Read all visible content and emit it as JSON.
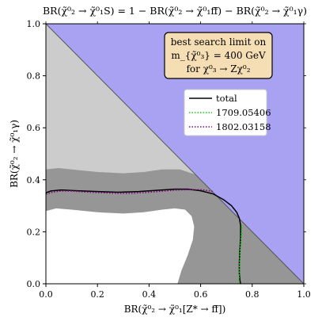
{
  "chart_data": {
    "type": "area",
    "title": "BR(χ̃⁰₂ → χ̃⁰₁S) = 1 − BR(χ̃⁰₂ → χ̃⁰₁ff̄) − BR(χ̃⁰₂ → χ̃⁰₁γ)",
    "xlabel": "BR(χ̃⁰₂ → χ̃⁰₁[Z* → ff̄])",
    "ylabel": "BR(χ̃⁰₂ → χ̃⁰₁γ)",
    "xlim": [
      0,
      1
    ],
    "ylim": [
      0,
      1
    ],
    "x_ticks": [
      "0.0",
      "0.2",
      "0.4",
      "0.6",
      "0.8",
      "1.0"
    ],
    "y_ticks": [
      "0.0",
      "0.2",
      "0.4",
      "0.6",
      "0.8",
      "1.0"
    ],
    "grid": false,
    "unphysical_region": {
      "description": "x + y > 1",
      "color": "#a9a2f2"
    },
    "upper_region_color": "#cccccc",
    "band_color": "#969696",
    "allowed_region_color": "#ffffff",
    "annotation": {
      "line1": "best search limit on",
      "line2": "m_{χ̃⁰₃} = 400  GeV",
      "line3": "for χ⁰₃ → Zχ⁰₂",
      "fill": "#f5deb3"
    },
    "legend_position": "center-right",
    "series": [
      {
        "name": "total",
        "color": "#000000",
        "style": "solid",
        "x": [
          0.0,
          0.02,
          0.06,
          0.12,
          0.2,
          0.28,
          0.36,
          0.44,
          0.5,
          0.55,
          0.6,
          0.65,
          0.69,
          0.72,
          0.74,
          0.75,
          0.755,
          0.755,
          0.752,
          0.75,
          0.75,
          0.752,
          0.755
        ],
        "y": [
          0.35,
          0.357,
          0.361,
          0.358,
          0.355,
          0.352,
          0.355,
          0.36,
          0.364,
          0.364,
          0.358,
          0.345,
          0.323,
          0.3,
          0.275,
          0.252,
          0.225,
          0.18,
          0.13,
          0.08,
          0.04,
          0.015,
          0.0
        ]
      },
      {
        "name": "1709.05406",
        "color": "#00dd00",
        "style": "dotted",
        "x": [
          0.748,
          0.75,
          0.752,
          0.755,
          0.758,
          0.76
        ],
        "y": [
          0.0,
          0.05,
          0.1,
          0.15,
          0.19,
          0.225
        ]
      },
      {
        "name": "1802.03158",
        "color": "#880088",
        "style": "dotted",
        "x": [
          0.0,
          0.03,
          0.06,
          0.1,
          0.15,
          0.2,
          0.25,
          0.3,
          0.35,
          0.4,
          0.45,
          0.5,
          0.55,
          0.6,
          0.63,
          0.65
        ],
        "y": [
          0.345,
          0.353,
          0.357,
          0.357,
          0.353,
          0.351,
          0.349,
          0.348,
          0.349,
          0.352,
          0.356,
          0.36,
          0.362,
          0.362,
          0.358,
          0.355
        ]
      }
    ]
  }
}
